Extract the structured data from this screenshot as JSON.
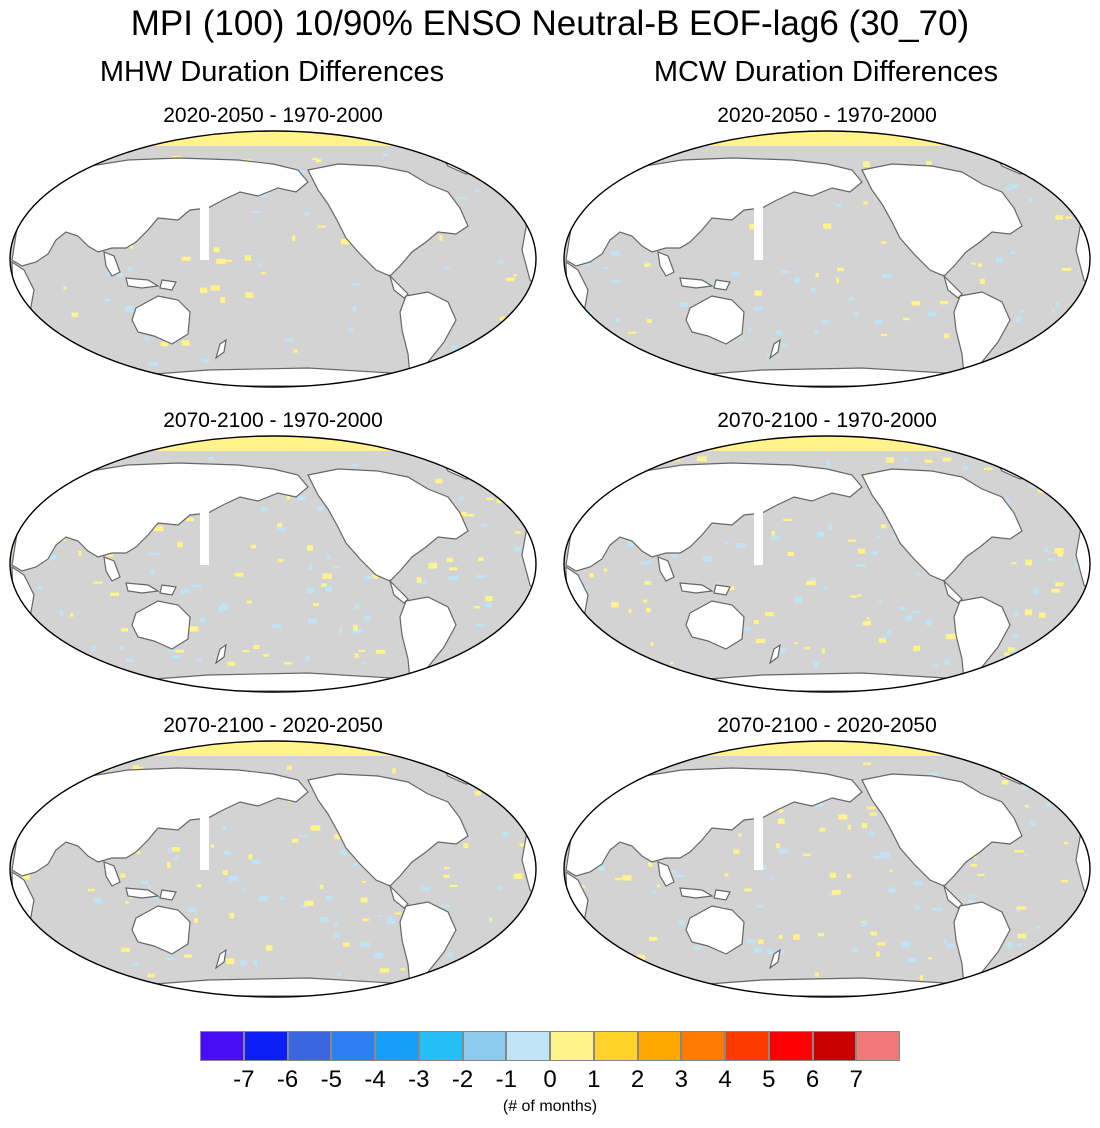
{
  "title": "MPI (100) 10/90% ENSO Neutral-B EOF-lag6 (30_70)",
  "columns": [
    {
      "title": "MHW Duration Differences"
    },
    {
      "title": "MCW Duration Differences"
    }
  ],
  "panels": [
    {
      "subtitle": "2020-2050 - 1970-2000"
    },
    {
      "subtitle": "2020-2050 - 1970-2000"
    },
    {
      "subtitle": "2070-2100 - 1970-2000"
    },
    {
      "subtitle": "2070-2100 - 1970-2000"
    },
    {
      "subtitle": "2070-2100 - 2020-2050"
    },
    {
      "subtitle": "2070-2100 - 2020-2050"
    }
  ],
  "colorbar": {
    "colors": [
      "#4a0cf5",
      "#0a1ef5",
      "#3a66e0",
      "#2b7ff0",
      "#169ef8",
      "#25c0f8",
      "#8ccbee",
      "#bfe4f6",
      "#fff38a",
      "#ffd22a",
      "#ffa800",
      "#ff7a00",
      "#ff3a00",
      "#ff0000",
      "#c80000",
      "#f07878"
    ],
    "labels": [
      "-7",
      "-6",
      "-5",
      "-4",
      "-3",
      "-2",
      "-1",
      "0",
      "1",
      "2",
      "3",
      "4",
      "5",
      "6",
      "7"
    ],
    "units": "(# of months)"
  },
  "map_colors": {
    "ocean": "#d3d3d3",
    "land": "#ffffff",
    "coast": "#666666",
    "positive": "#fff38a",
    "negative": "#bfe4f6"
  }
}
